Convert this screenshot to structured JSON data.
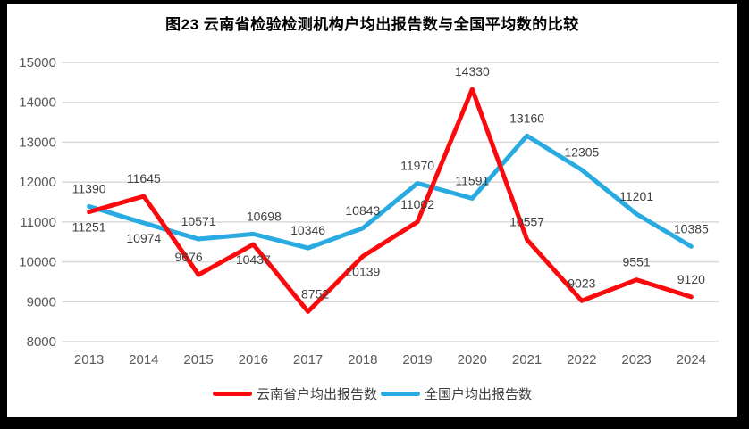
{
  "colors": {
    "frame_background": "#000000",
    "plot_background": "#ffffff",
    "gridline": "#d9d9d9",
    "axis_text": "#595959",
    "data_label_text": "#404040",
    "title_text": "#000000",
    "series_yunnan": "#fb0a0d",
    "series_national": "#29abe2"
  },
  "chart_data": {
    "type": "line",
    "title": "图23 云南省检验检测机构户均出报告数与全国平均数的比较",
    "xlabel": "",
    "ylabel": "",
    "categories": [
      "2013",
      "2014",
      "2015",
      "2016",
      "2017",
      "2018",
      "2019",
      "2020",
      "2021",
      "2022",
      "2023",
      "2024"
    ],
    "series": [
      {
        "id": "yunnan",
        "name": "云南省户均出报告数",
        "color": "#fb0a0d",
        "values": [
          11251,
          11645,
          9676,
          10437,
          8752,
          10139,
          11002,
          14330,
          10557,
          9023,
          9551,
          9120
        ],
        "label_side": [
          "below",
          "above",
          "above",
          "below",
          "above",
          "below",
          "above",
          "above",
          "above",
          "above",
          "above",
          "above"
        ],
        "label_dx": [
          0,
          0,
          -11,
          0,
          8,
          0,
          0,
          0,
          0,
          0,
          0,
          0
        ]
      },
      {
        "id": "national",
        "name": "全国户均出报告数",
        "color": "#29abe2",
        "values": [
          11390,
          10974,
          10571,
          10698,
          10346,
          10843,
          11970,
          11591,
          13160,
          12305,
          11201,
          10385
        ],
        "label_side": [
          "above",
          "below",
          "above",
          "above",
          "above",
          "above",
          "above",
          "above",
          "above",
          "above",
          "above",
          "above"
        ],
        "label_dx": [
          0,
          0,
          0,
          12,
          0,
          0,
          0,
          0,
          0,
          0,
          0,
          0
        ]
      }
    ],
    "ylim": [
      8000,
      15000
    ],
    "yticks": [
      8000,
      9000,
      10000,
      11000,
      12000,
      13000,
      14000,
      15000
    ],
    "grid": "horizontal-only",
    "legend_position": "bottom",
    "data_labels": "shown"
  }
}
